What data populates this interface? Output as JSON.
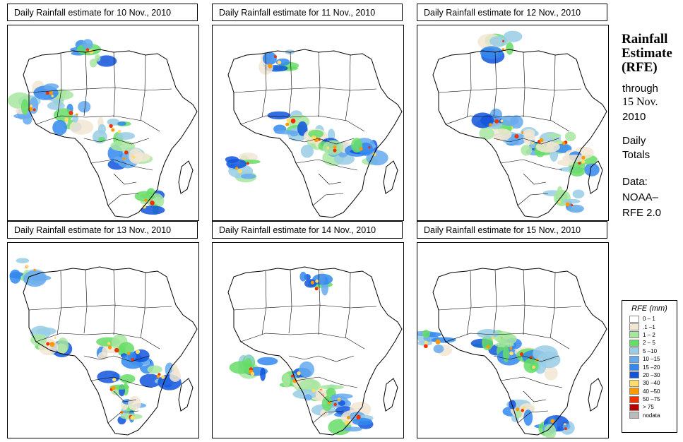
{
  "panels": [
    {
      "title": "Daily Rainfall estimate for  10 Nov., 2010"
    },
    {
      "title": "Daily Rainfall estimate for  11 Nov., 2010"
    },
    {
      "title": "Daily Rainfall estimate for  12 Nov., 2010"
    },
    {
      "title": "Daily Rainfall estimate for  13 Nov., 2010"
    },
    {
      "title": "Daily Rainfall estimate for  14 Nov., 2010"
    },
    {
      "title": "Daily Rainfall estimate for  15 Nov., 2010"
    }
  ],
  "side": {
    "title_line1": "Rainfall",
    "title_line2": "Estimate",
    "title_line3": "(RFE)",
    "through": "through",
    "date_line1": "15 Nov.",
    "date_line2": "2010",
    "daily": "Daily",
    "totals": "Totals",
    "data_label": "Data:",
    "source_line1": "NOAA–",
    "source_line2": "RFE 2.0"
  },
  "legend": {
    "title": "RFE (mm)",
    "items": [
      {
        "label": "0 – 1",
        "color": "#ffffff"
      },
      {
        "label": ".1 –1",
        "color": "#f2e6d2"
      },
      {
        "label": "1 – 2",
        "color": "#a8e6a0"
      },
      {
        "label": "2 – 5",
        "color": "#66dd66"
      },
      {
        "label": "5 –10",
        "color": "#99cce6"
      },
      {
        "label": "10 –15",
        "color": "#66aaee"
      },
      {
        "label": "15 –20",
        "color": "#3388ee"
      },
      {
        "label": "20 –30",
        "color": "#1155dd"
      },
      {
        "label": "30 –40",
        "color": "#ffdd66"
      },
      {
        "label": "40 –50",
        "color": "#ff9900"
      },
      {
        "label": "50 –75",
        "color": "#ee3300"
      },
      {
        "label": "> 75",
        "color": "#bb0000"
      },
      {
        "label": "nodata",
        "color": "#bbbbbb"
      }
    ]
  }
}
